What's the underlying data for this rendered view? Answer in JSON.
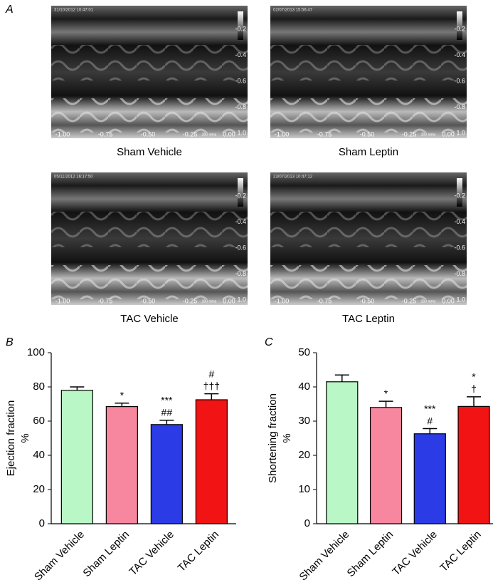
{
  "echo": {
    "panel_label": "A",
    "x_ticks": [
      "-1.00",
      "-0.75",
      "-0.50",
      "-0.25",
      "0.00"
    ],
    "scale_label": "200 mms",
    "depth_ticks": [
      "-0.2",
      "-0.4",
      "-0.6",
      "-0.8",
      "1.0"
    ],
    "images": [
      {
        "timestamp": "31/10/2012 10:47:01",
        "caption": "Sham Vehicle"
      },
      {
        "timestamp": "02/07/2013 15:56:47",
        "caption": "Sham Leptin"
      },
      {
        "timestamp": "05/11/2012 16:17:50",
        "caption": "TAC Vehicle"
      },
      {
        "timestamp": "23/07/2013 10:47:12",
        "caption": "TAC Leptin"
      }
    ]
  },
  "chart_data": [
    {
      "type": "bar",
      "panel_label": "B",
      "y_label": "Ejection fraction",
      "y_unit": "%",
      "categories": [
        "Sham Vehicle",
        "Sham Leptin",
        "TAC Vehicle",
        "TAC Leptin"
      ],
      "values": [
        78,
        68.5,
        58,
        72.5
      ],
      "errors": [
        2,
        2,
        2.5,
        3.5
      ],
      "colors": [
        "#b9f7c6",
        "#f7879e",
        "#2b3ce6",
        "#f21414"
      ],
      "annotations": [
        [],
        [
          "*"
        ],
        [
          "***",
          "##"
        ],
        [
          "#",
          "†††"
        ]
      ],
      "ylim": [
        0,
        100
      ],
      "yticks": [
        0,
        20,
        40,
        60,
        80,
        100
      ]
    },
    {
      "type": "bar",
      "panel_label": "C",
      "y_label": "Shortening fraction",
      "y_unit": "%",
      "categories": [
        "Sham Vehicle",
        "Sham Leptin",
        "TAC Vehicle",
        "TAC Leptin"
      ],
      "values": [
        41.5,
        34,
        26.3,
        34.3
      ],
      "errors": [
        2,
        1.8,
        1.5,
        2.8
      ],
      "colors": [
        "#b9f7c6",
        "#f7879e",
        "#2b3ce6",
        "#f21414"
      ],
      "annotations": [
        [],
        [
          "*"
        ],
        [
          "***",
          "#"
        ],
        [
          "*",
          "†"
        ]
      ],
      "ylim": [
        0,
        50
      ],
      "yticks": [
        0,
        10,
        20,
        30,
        40,
        50
      ]
    }
  ]
}
